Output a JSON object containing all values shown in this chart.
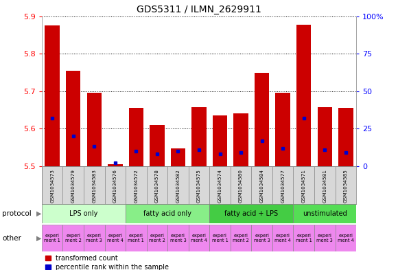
{
  "title": "GDS5311 / ILMN_2629911",
  "samples": [
    "GSM1034573",
    "GSM1034579",
    "GSM1034583",
    "GSM1034576",
    "GSM1034572",
    "GSM1034578",
    "GSM1034582",
    "GSM1034575",
    "GSM1034574",
    "GSM1034580",
    "GSM1034584",
    "GSM1034577",
    "GSM1034571",
    "GSM1034581",
    "GSM1034585"
  ],
  "transformed_count": [
    5.875,
    5.755,
    5.695,
    5.505,
    5.655,
    5.61,
    5.547,
    5.657,
    5.635,
    5.64,
    5.748,
    5.695,
    5.878,
    5.657,
    5.655
  ],
  "percentile_rank": [
    32,
    20,
    13,
    2,
    10,
    8,
    10,
    11,
    8,
    9,
    17,
    12,
    32,
    11,
    9
  ],
  "ymin": 5.5,
  "ymax": 5.9,
  "yticks": [
    5.5,
    5.6,
    5.7,
    5.8,
    5.9
  ],
  "y2ticks": [
    0,
    25,
    50,
    75,
    100
  ],
  "bar_color": "#cc0000",
  "percentile_color": "#0000cc",
  "bg_color": "#d8d8d8",
  "plot_bg": "#ffffff",
  "protocol_groups": [
    {
      "label": "LPS only",
      "start": 0,
      "end": 4,
      "color": "#ccffcc"
    },
    {
      "label": "fatty acid only",
      "start": 4,
      "end": 8,
      "color": "#88ee88"
    },
    {
      "label": "fatty acid + LPS",
      "start": 8,
      "end": 12,
      "color": "#44cc44"
    },
    {
      "label": "unstimulated",
      "start": 12,
      "end": 15,
      "color": "#55dd55"
    }
  ],
  "other_labels": [
    "experi\nment 1",
    "experi\nment 2",
    "experi\nment 3",
    "experi\nment 4",
    "experi\nment 1",
    "experi\nment 2",
    "experi\nment 3",
    "experi\nment 4",
    "experi\nment 1",
    "experi\nment 2",
    "experi\nment 3",
    "experi\nment 4",
    "experi\nment 1",
    "experi\nment 3",
    "experi\nment 4"
  ],
  "other_colors": [
    "#ee88ee",
    "#ee88ee",
    "#ee88ee",
    "#ee88ee",
    "#ee88ee",
    "#ee88ee",
    "#ee88ee",
    "#ee88ee",
    "#ee88ee",
    "#ee88ee",
    "#ee88ee",
    "#ee88ee",
    "#ee88ee",
    "#ee88ee",
    "#ee88ee"
  ]
}
